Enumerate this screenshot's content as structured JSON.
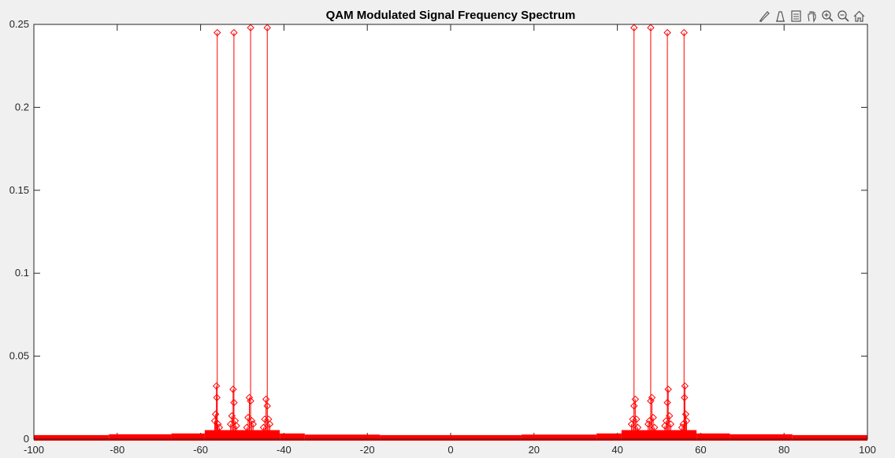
{
  "figure": {
    "background": "#f0f0f0",
    "axes_background": "#ffffff",
    "mark_color": "#ff0000"
  },
  "toolbar": {
    "buttons": [
      {
        "icon": "brush-icon"
      },
      {
        "icon": "data-tips-icon"
      },
      {
        "icon": "legend-icon"
      },
      {
        "icon": "pan-icon"
      },
      {
        "icon": "zoom-in-icon"
      },
      {
        "icon": "zoom-out-icon"
      },
      {
        "icon": "home-icon"
      }
    ]
  },
  "chart_data": {
    "type": "stem",
    "title": "QAM Modulated Signal Frequency Spectrum",
    "xlabel": "",
    "ylabel": "",
    "xlim": [
      -100,
      100
    ],
    "ylim": [
      0,
      0.25
    ],
    "xticks": [
      -100,
      -80,
      -60,
      -40,
      -20,
      0,
      20,
      40,
      60,
      80,
      100
    ],
    "xtick_labels": [
      "-100",
      "-80",
      "-60",
      "-40",
      "-20",
      "0",
      "20",
      "40",
      "60",
      "80",
      "100"
    ],
    "yticks": [
      0,
      0.05,
      0.1,
      0.15,
      0.2,
      0.25
    ],
    "ytick_labels": [
      "0",
      "0.05",
      "0.1",
      "0.15",
      "0.2",
      "0.25"
    ],
    "grid": false,
    "marker": "diamond",
    "major_peaks": [
      {
        "x": -56,
        "y": 0.245
      },
      {
        "x": -52,
        "y": 0.245
      },
      {
        "x": -48,
        "y": 0.248
      },
      {
        "x": -44,
        "y": 0.248
      },
      {
        "x": 44,
        "y": 0.248
      },
      {
        "x": 48,
        "y": 0.248
      },
      {
        "x": 52,
        "y": 0.245
      },
      {
        "x": 56,
        "y": 0.245
      }
    ],
    "secondary_points": [
      {
        "x": -56.2,
        "y": 0.032
      },
      {
        "x": -56.1,
        "y": 0.025
      },
      {
        "x": -56.4,
        "y": 0.015
      },
      {
        "x": -56.6,
        "y": 0.011
      },
      {
        "x": -55.8,
        "y": 0.009
      },
      {
        "x": -55.5,
        "y": 0.007
      },
      {
        "x": -52.2,
        "y": 0.03
      },
      {
        "x": -52.0,
        "y": 0.022
      },
      {
        "x": -52.5,
        "y": 0.014
      },
      {
        "x": -51.7,
        "y": 0.011
      },
      {
        "x": -52.8,
        "y": 0.009
      },
      {
        "x": -51.4,
        "y": 0.008
      },
      {
        "x": -48.3,
        "y": 0.025
      },
      {
        "x": -48.0,
        "y": 0.023
      },
      {
        "x": -48.6,
        "y": 0.013
      },
      {
        "x": -47.7,
        "y": 0.011
      },
      {
        "x": -47.4,
        "y": 0.009
      },
      {
        "x": -48.9,
        "y": 0.007
      },
      {
        "x": -44.3,
        "y": 0.024
      },
      {
        "x": -44.0,
        "y": 0.02
      },
      {
        "x": -44.6,
        "y": 0.012
      },
      {
        "x": -43.7,
        "y": 0.012
      },
      {
        "x": -43.4,
        "y": 0.009
      },
      {
        "x": -44.9,
        "y": 0.007
      },
      {
        "x": 44.3,
        "y": 0.024
      },
      {
        "x": 44.0,
        "y": 0.02
      },
      {
        "x": 44.6,
        "y": 0.012
      },
      {
        "x": 43.7,
        "y": 0.012
      },
      {
        "x": 43.4,
        "y": 0.009
      },
      {
        "x": 44.9,
        "y": 0.007
      },
      {
        "x": 48.3,
        "y": 0.025
      },
      {
        "x": 48.0,
        "y": 0.023
      },
      {
        "x": 48.6,
        "y": 0.013
      },
      {
        "x": 47.7,
        "y": 0.011
      },
      {
        "x": 47.4,
        "y": 0.009
      },
      {
        "x": 48.9,
        "y": 0.007
      },
      {
        "x": 52.2,
        "y": 0.03
      },
      {
        "x": 52.0,
        "y": 0.022
      },
      {
        "x": 52.5,
        "y": 0.014
      },
      {
        "x": 51.7,
        "y": 0.011
      },
      {
        "x": 52.8,
        "y": 0.009
      },
      {
        "x": 51.4,
        "y": 0.008
      },
      {
        "x": 56.2,
        "y": 0.032
      },
      {
        "x": 56.1,
        "y": 0.025
      },
      {
        "x": 56.4,
        "y": 0.015
      },
      {
        "x": 56.6,
        "y": 0.011
      },
      {
        "x": 55.8,
        "y": 0.009
      },
      {
        "x": 55.5,
        "y": 0.007
      }
    ],
    "noise_floor": [
      {
        "x_range": [
          -100,
          -82
        ],
        "y": 0.001
      },
      {
        "x_range": [
          -82,
          -67
        ],
        "y": 0.0015
      },
      {
        "x_range": [
          -67,
          -59
        ],
        "y": 0.002
      },
      {
        "x_range": [
          -59,
          -41
        ],
        "y": 0.004
      },
      {
        "x_range": [
          -41,
          -35
        ],
        "y": 0.002
      },
      {
        "x_range": [
          -35,
          -17
        ],
        "y": 0.0013
      },
      {
        "x_range": [
          -17,
          17
        ],
        "y": 0.001
      },
      {
        "x_range": [
          17,
          35
        ],
        "y": 0.0013
      },
      {
        "x_range": [
          35,
          41
        ],
        "y": 0.002
      },
      {
        "x_range": [
          41,
          59
        ],
        "y": 0.004
      },
      {
        "x_range": [
          59,
          67
        ],
        "y": 0.002
      },
      {
        "x_range": [
          67,
          82
        ],
        "y": 0.0015
      },
      {
        "x_range": [
          82,
          100
        ],
        "y": 0.001
      }
    ]
  }
}
